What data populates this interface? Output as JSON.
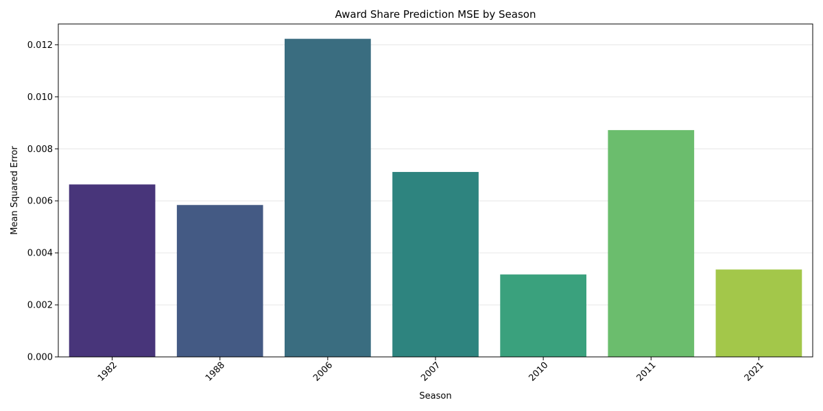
{
  "chart_data": {
    "type": "bar",
    "title": "Award Share Prediction MSE by Season",
    "xlabel": "Season",
    "ylabel": "Mean Squared Error",
    "categories": [
      "1982",
      "1988",
      "2006",
      "2007",
      "2010",
      "2011",
      "2021"
    ],
    "values": [
      0.00663,
      0.00584,
      0.01223,
      0.00711,
      0.00317,
      0.00872,
      0.00336
    ],
    "colors": [
      "#48357a",
      "#445a84",
      "#3a6d80",
      "#2e847f",
      "#3aa17d",
      "#6bbd6d",
      "#a3c74a"
    ],
    "ylim": [
      0,
      0.0128
    ],
    "yticks": [
      "0.000",
      "0.002",
      "0.004",
      "0.006",
      "0.008",
      "0.010",
      "0.012"
    ],
    "ytick_values": [
      0,
      0.002,
      0.004,
      0.006,
      0.008,
      0.01,
      0.012
    ],
    "grid": "y",
    "legend": "none"
  }
}
